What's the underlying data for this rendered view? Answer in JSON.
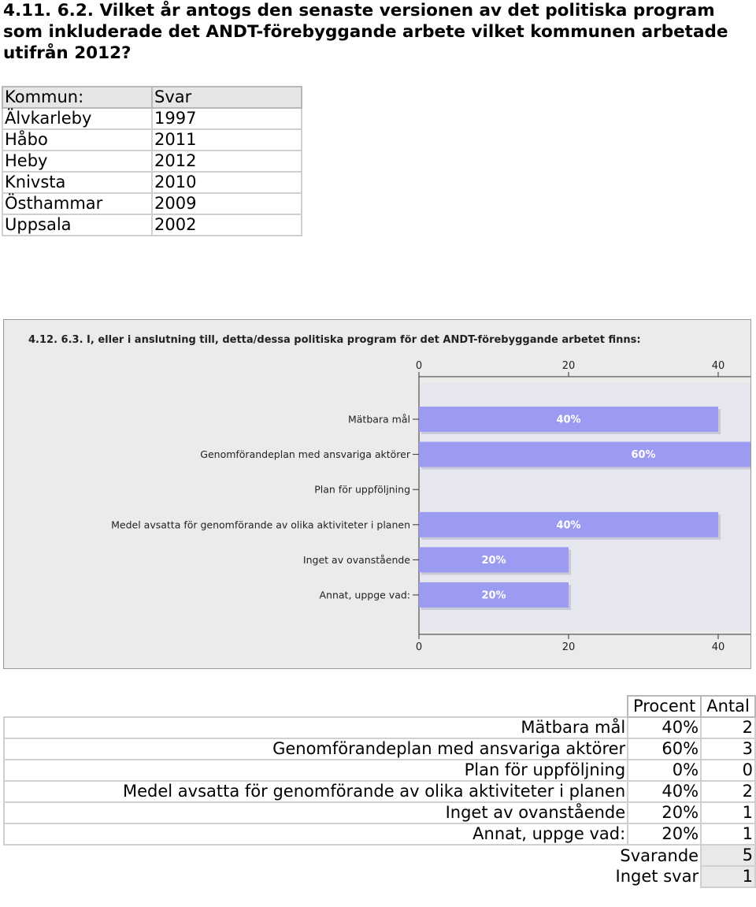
{
  "question": "4.11. 6.2. Vilket år antogs den senaste versionen av det politiska program som inkluderade det ANDT-förebyggande arbete vilket kommunen arbetade utifrån 2012?",
  "municipality_table": {
    "headers": [
      "Kommun:",
      "Svar"
    ],
    "rows": [
      [
        "Älvkarleby",
        "1997"
      ],
      [
        "Håbo",
        "2011"
      ],
      [
        "Heby",
        "2012"
      ],
      [
        "Knivsta",
        "2010"
      ],
      [
        "Östhammar",
        "2009"
      ],
      [
        "Uppsala",
        "2002"
      ]
    ]
  },
  "chart_data": {
    "type": "bar",
    "orientation": "horizontal",
    "title": "4.12. 6.3. I, eller i anslutning till, detta/dessa politiska program för det ANDT-förebyggande arbetet finns:",
    "categories": [
      "Mätbara mål",
      "Genomförandeplan med ansvariga aktörer",
      "Plan för uppföljning",
      "Medel avsatta för genomförande av olika aktiviteter i planen",
      "Inget av ovanstående",
      "Annat, uppge vad:"
    ],
    "values": [
      40,
      60,
      0,
      40,
      20,
      20
    ],
    "data_labels": [
      "40%",
      "60%",
      "",
      "40%",
      "20%",
      "20%"
    ],
    "xlim": [
      0,
      80
    ],
    "ticks": [
      "0",
      "20",
      "40",
      "60",
      "80"
    ],
    "xlabel": "",
    "ylabel": "",
    "grid": false,
    "bar_color": "#9b9bf2",
    "plot_background": "#e6e6ee"
  },
  "results_table": {
    "headers": [
      "Procent",
      "Antal"
    ],
    "rows": [
      [
        "Mätbara mål",
        "40%",
        "2"
      ],
      [
        "Genomförandeplan med ansvariga aktörer",
        "60%",
        "3"
      ],
      [
        "Plan för uppföljning",
        "0%",
        "0"
      ],
      [
        "Medel avsatta för genomförande av olika aktiviteter i planen",
        "40%",
        "2"
      ],
      [
        "Inget av ovanstående",
        "20%",
        "1"
      ],
      [
        "Annat, uppge vad:",
        "20%",
        "1"
      ]
    ],
    "summary": [
      [
        "Svarande",
        "5"
      ],
      [
        "Inget svar",
        "1"
      ]
    ]
  }
}
